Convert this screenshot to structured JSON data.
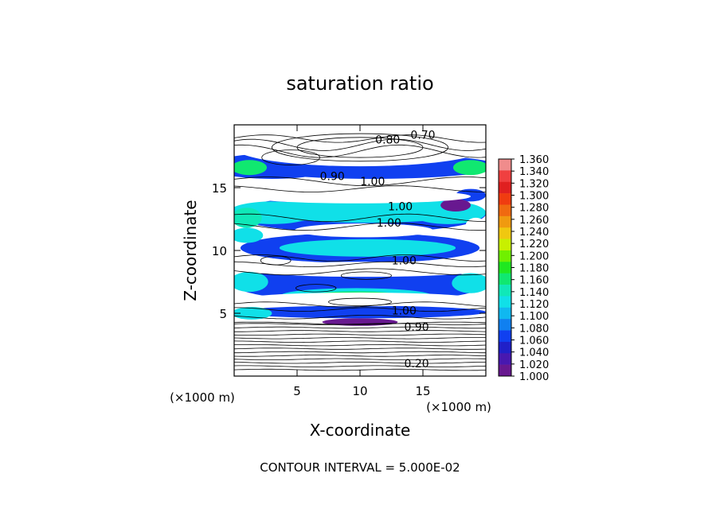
{
  "chart_data": {
    "type": "heatmap",
    "title": "saturation ratio",
    "xlabel": "X-coordinate",
    "ylabel": "Z-coordinate",
    "x_unit_label": "(×1000 m)",
    "z_unit_label": "(×1000 m)",
    "xlim": [
      0,
      20
    ],
    "ylim": [
      0,
      20
    ],
    "x_ticks": [
      5,
      10,
      15
    ],
    "y_ticks": [
      5,
      10,
      15
    ],
    "footer": "CONTOUR INTERVAL = 5.000E-02",
    "colorbar": {
      "min": 1.0,
      "max": 1.36,
      "step": 0.02,
      "labels": [
        "1.360",
        "1.340",
        "1.320",
        "1.300",
        "1.280",
        "1.260",
        "1.240",
        "1.220",
        "1.200",
        "1.180",
        "1.160",
        "1.140",
        "1.120",
        "1.100",
        "1.080",
        "1.060",
        "1.040",
        "1.020",
        "1.000"
      ],
      "colors": [
        "#f08c8c",
        "#f04040",
        "#e02020",
        "#f03c10",
        "#f06a10",
        "#f09a10",
        "#f0c810",
        "#c8f000",
        "#70f000",
        "#20e820",
        "#10e870",
        "#10e8b8",
        "#10e0e8",
        "#10b8f0",
        "#1080f0",
        "#1040f0",
        "#2020c8",
        "#4818b0",
        "#681890"
      ]
    },
    "contour_labels": [
      {
        "text": "0.70",
        "x": 15.0,
        "y": 18.9
      },
      {
        "text": "0.80",
        "x": 12.2,
        "y": 18.5
      },
      {
        "text": "0.90",
        "x": 7.8,
        "y": 15.6
      },
      {
        "text": "1.00",
        "x": 11.0,
        "y": 15.2
      },
      {
        "text": "1.00",
        "x": 13.2,
        "y": 13.2
      },
      {
        "text": "1.00",
        "x": 12.3,
        "y": 11.9
      },
      {
        "text": "1.00",
        "x": 13.5,
        "y": 8.9
      },
      {
        "text": "1.00",
        "x": 13.5,
        "y": 4.9
      },
      {
        "text": "0.90",
        "x": 14.5,
        "y": 3.6
      },
      {
        "text": "0.20",
        "x": 14.5,
        "y": 0.7
      }
    ]
  }
}
